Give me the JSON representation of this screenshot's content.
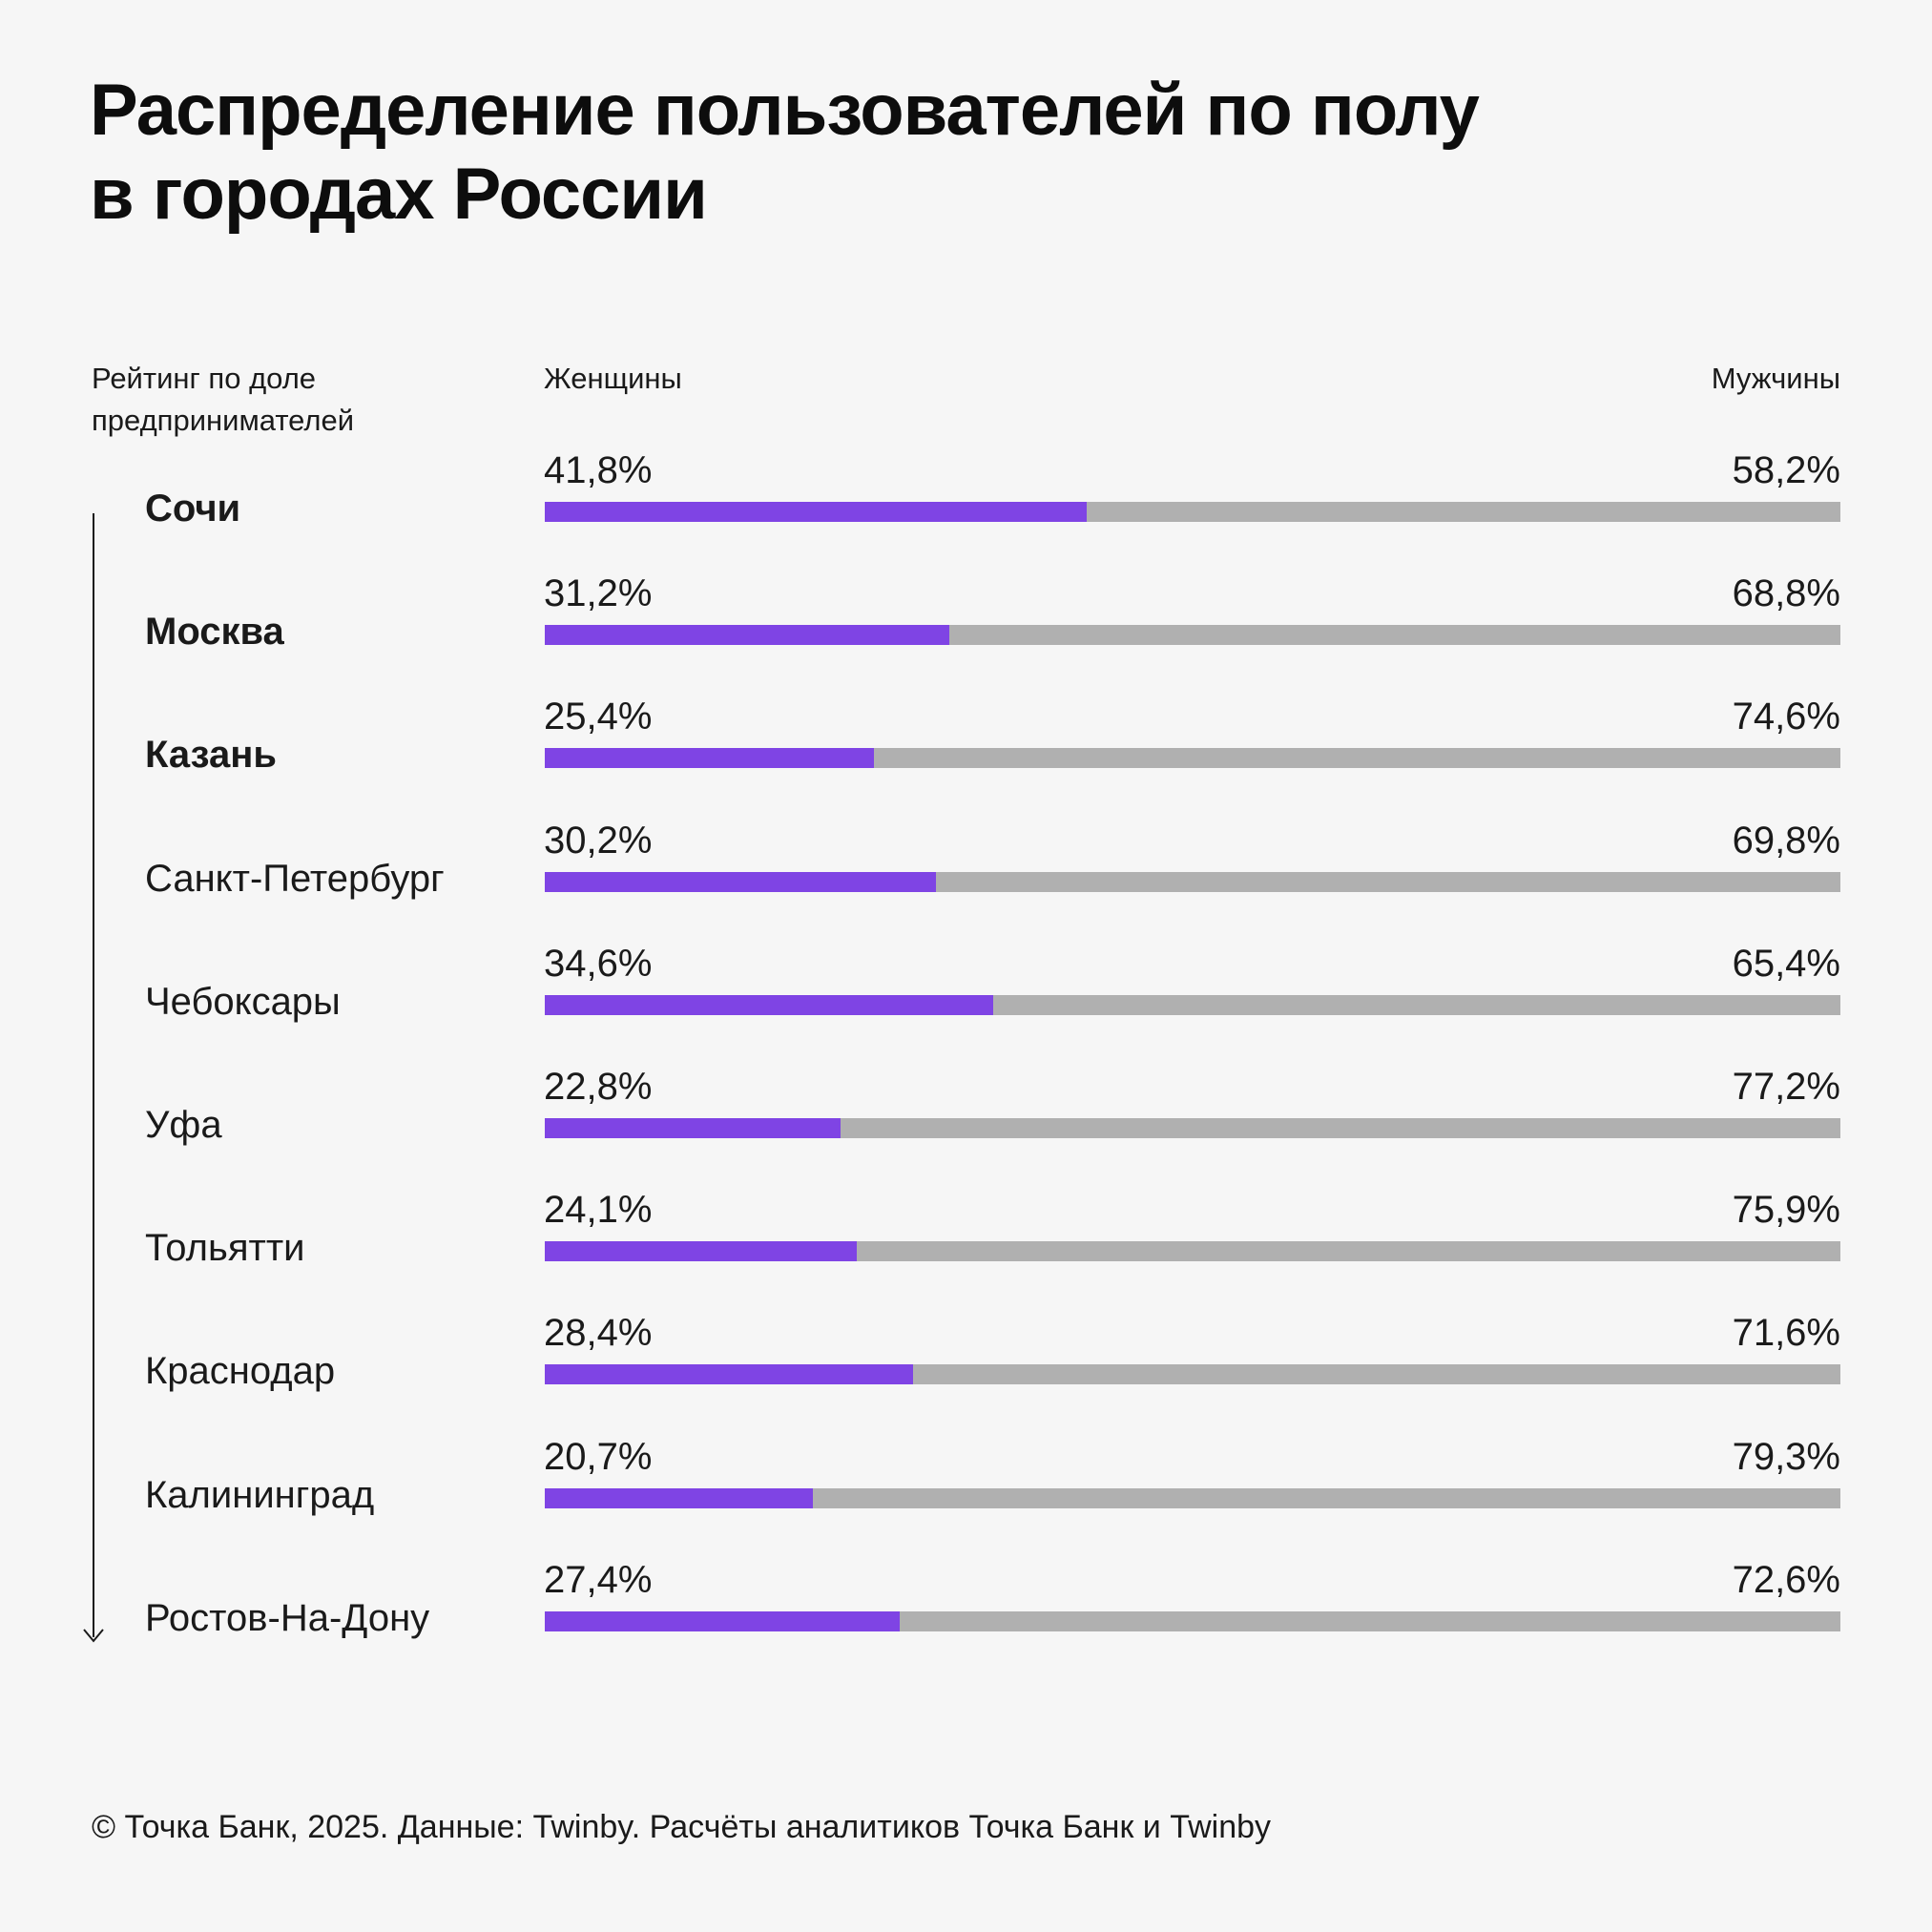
{
  "title_lines": [
    "Распределение пользователей по полу",
    "в городах России"
  ],
  "rank_caption_lines": [
    "Рейтинг по доле",
    "предпринимателей"
  ],
  "columns": {
    "women": "Женщины",
    "men": "Мужчины"
  },
  "footer": "© Точка Банк, 2025. Данные: Twinby. Расчёты аналитиков Точка Банк и Twinby",
  "colors": {
    "women": "#7f44e4",
    "men": "#b0b0b0",
    "background": "#f6f6f6"
  },
  "icons": {
    "rank_arrow": "arrow-down-icon"
  },
  "chart_data": {
    "type": "bar",
    "stacked": true,
    "orientation": "horizontal",
    "xlim": [
      0,
      100
    ],
    "value_unit": "%",
    "categories": [
      "Сочи",
      "Москва",
      "Казань",
      "Санкт-Петербург",
      "Чебоксары",
      "Уфа",
      "Тольятти",
      "Краснодар",
      "Калининград",
      "Ростов-На-Дону"
    ],
    "highlighted_categories": [
      "Сочи",
      "Москва",
      "Казань"
    ],
    "series": [
      {
        "name": "Женщины",
        "values": [
          41.8,
          31.2,
          25.4,
          30.2,
          34.6,
          22.8,
          24.1,
          28.4,
          20.7,
          27.4
        ],
        "labels": [
          "41,8%",
          "31,2%",
          "25,4%",
          "30,2%",
          "34,6%",
          "22,8%",
          "24,1%",
          "28,4%",
          "20,7%",
          "27,4%"
        ]
      },
      {
        "name": "Мужчины",
        "values": [
          58.2,
          68.8,
          74.6,
          69.8,
          65.4,
          77.2,
          75.9,
          71.6,
          79.3,
          72.6
        ],
        "labels": [
          "58,2%",
          "68,8%",
          "74,6%",
          "69,8%",
          "65,4%",
          "77,2%",
          "75,9%",
          "71,6%",
          "79,3%",
          "72,6%"
        ]
      }
    ]
  }
}
